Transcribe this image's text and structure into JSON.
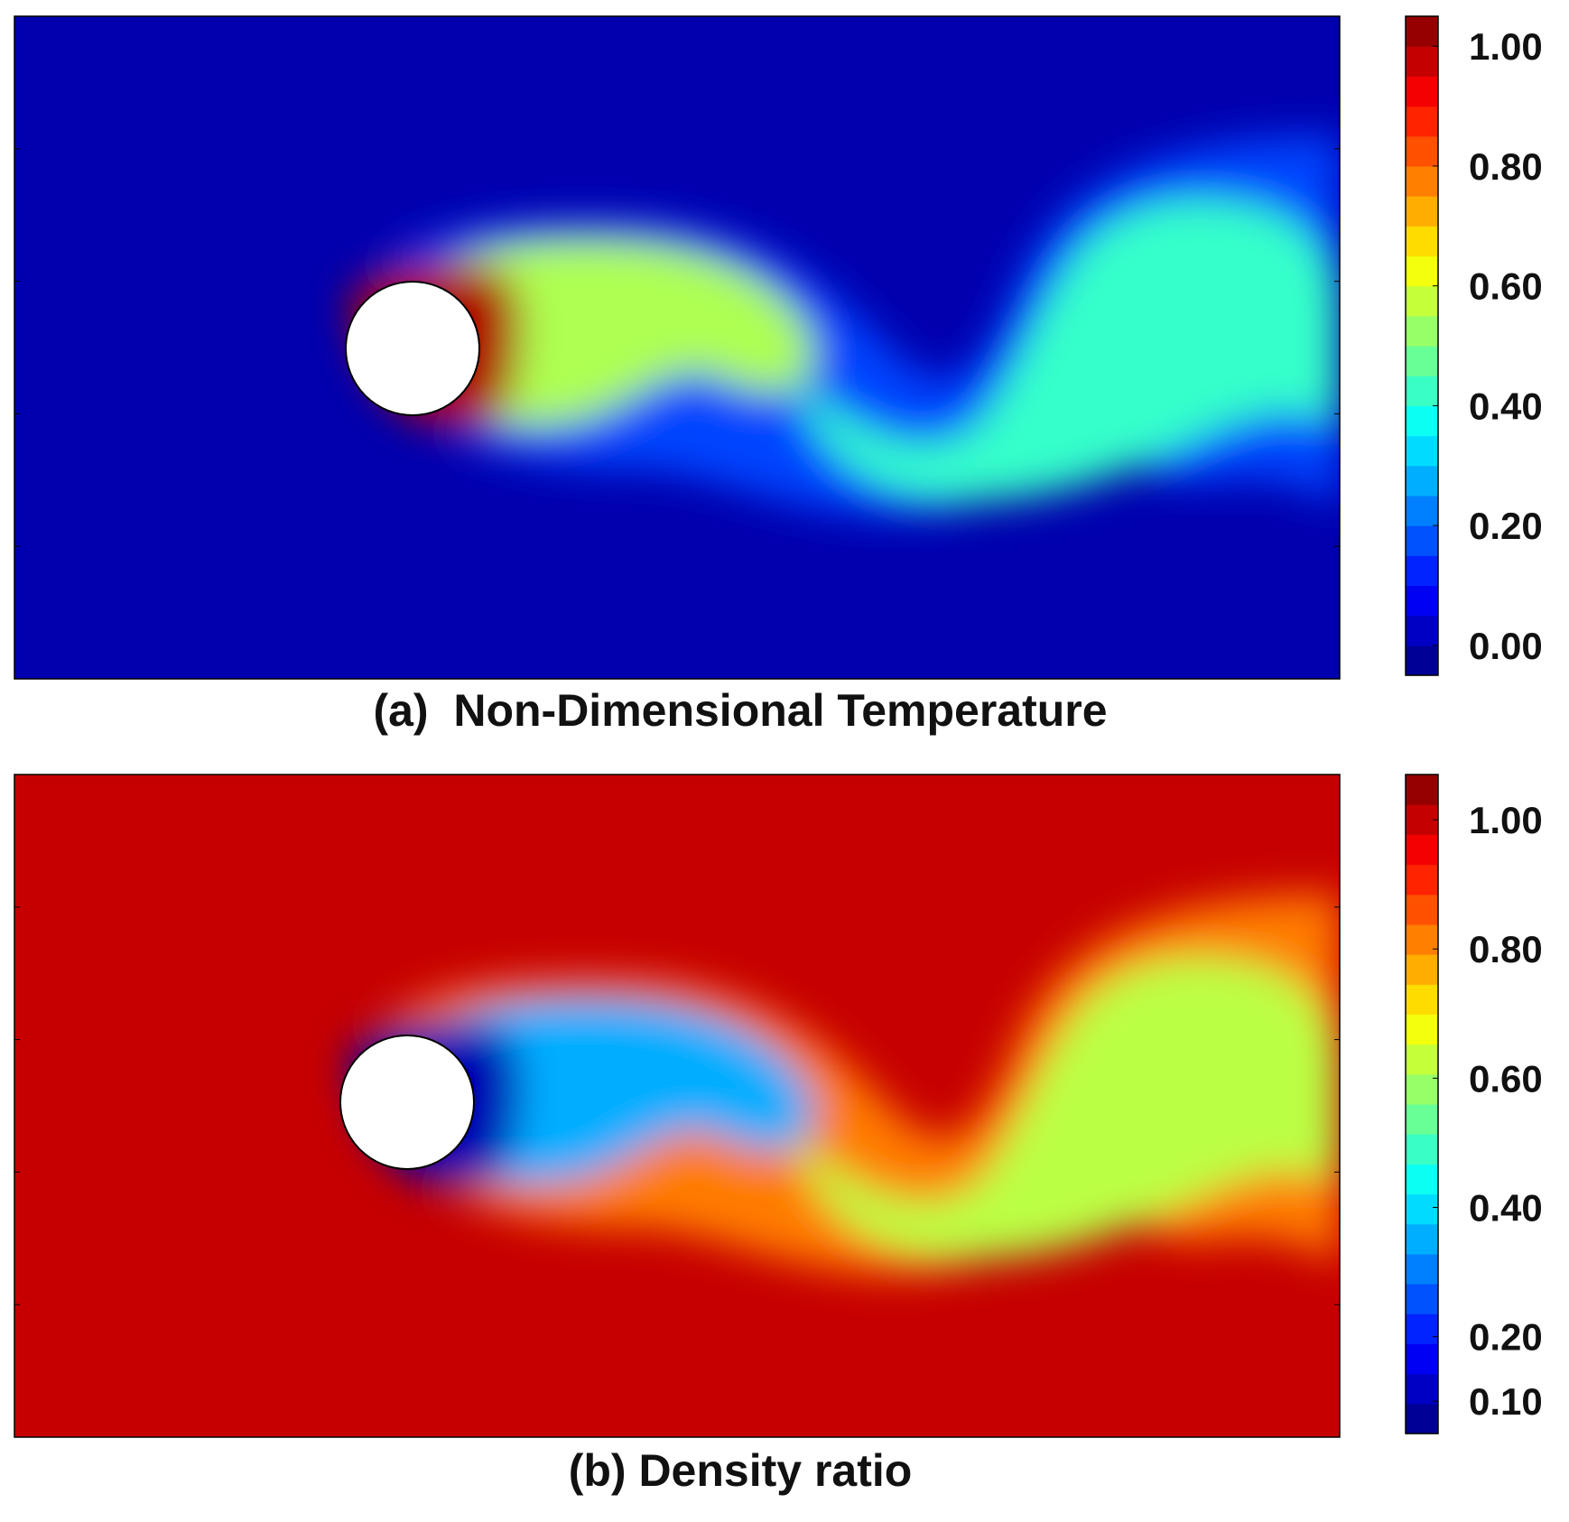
{
  "chart_data": [
    {
      "type": "heatmap",
      "panel": "a",
      "caption": "(a)  Non-Dimensional Temperature",
      "colormap": "jet",
      "colorbar": {
        "ticks": [
          0.0,
          0.2,
          0.4,
          0.6,
          0.8,
          1.0
        ],
        "tick_labels": [
          "0.00",
          "0.20",
          "0.40",
          "0.60",
          "0.80",
          "1.00"
        ],
        "range": [
          -0.05,
          1.05
        ],
        "levels": 22
      },
      "background_value": 0.0,
      "obstacle": "cylinder",
      "wake_values": {
        "near_cylinder": 1.0,
        "first_vortex": 0.55,
        "second_vortex": 0.42,
        "far_wake": 0.18
      }
    },
    {
      "type": "heatmap",
      "panel": "b",
      "caption": "(b) Density ratio",
      "colormap": "jet",
      "colorbar": {
        "ticks": [
          0.1,
          0.2,
          0.4,
          0.6,
          0.8,
          1.0
        ],
        "tick_labels": [
          "0.10",
          "0.20",
          "0.40",
          "0.60",
          "0.80",
          "1.00"
        ],
        "range": [
          0.05,
          1.07
        ],
        "levels": 22
      },
      "background_value": 1.0,
      "obstacle": "cylinder",
      "wake_values": {
        "near_cylinder": 0.1,
        "first_vortex": 0.35,
        "second_vortex": 0.62,
        "far_wake": 0.8
      }
    }
  ],
  "colors": {
    "obstacle_fill": "#ffffff",
    "frame": "#000000"
  }
}
